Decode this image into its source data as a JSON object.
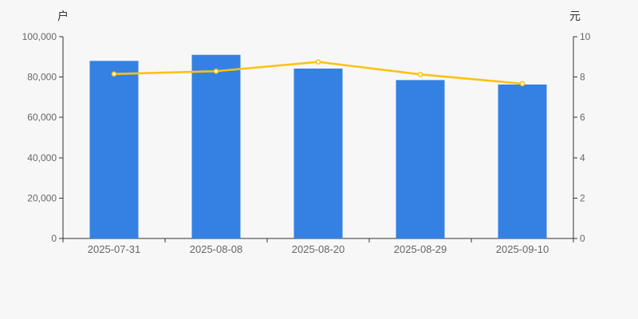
{
  "chart_data": {
    "type": "combo-bar-line",
    "title": "",
    "categories": [
      "2025-07-31",
      "2025-08-08",
      "2025-08-20",
      "2025-08-29",
      "2025-09-10"
    ],
    "series": [
      {
        "name": "户",
        "type": "bar",
        "axis": "left",
        "color": "#3581e3",
        "values": [
          88000,
          91000,
          84200,
          78500,
          76300
        ]
      },
      {
        "name": "元",
        "type": "line",
        "axis": "right",
        "color": "#fbc311",
        "values": [
          8.15,
          8.29,
          8.75,
          8.13,
          7.67
        ],
        "marker": {
          "fill": "#ffffff",
          "stroke": "#fbc311"
        }
      }
    ],
    "left_axis": {
      "label": "户",
      "min": 0,
      "max": 100000,
      "tick_interval": 20000,
      "tick_labels": [
        "0",
        "20,000",
        "40,000",
        "60,000",
        "80,000",
        "100,000"
      ]
    },
    "right_axis": {
      "label": "元",
      "min": 0,
      "max": 10,
      "tick_interval": 2,
      "tick_labels": [
        "0",
        "2",
        "4",
        "6",
        "8",
        "10"
      ]
    },
    "x_axis": {
      "boundary_ticks": true
    },
    "legend": "none",
    "grid_lines": "none",
    "background_color": "#f7f7f7",
    "axis_color": "#333333",
    "tick_label_color": "#666666",
    "axis_unit_color": "#333333"
  }
}
